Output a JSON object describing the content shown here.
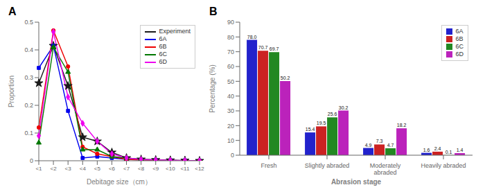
{
  "chart_data": [
    {
      "type": "line",
      "title": "A",
      "xlabel": "Debitage size（cm）",
      "ylabel": "Proportion",
      "categories": [
        "<1",
        "<2",
        "<3",
        "<4",
        "<5",
        "<6",
        "<7",
        "<8",
        "<9",
        "<10",
        "<11",
        "<12"
      ],
      "series": [
        {
          "name": "Experiment",
          "color": "#1a1a1a",
          "marker": "star",
          "values": [
            0.28,
            0.415,
            0.27,
            0.085,
            0.07,
            0.03,
            0.01,
            0.005,
            0.003,
            0.002,
            0.001,
            0.0
          ]
        },
        {
          "name": "6A",
          "color": "#0000ee",
          "marker": "square",
          "values": [
            0.335,
            0.415,
            0.18,
            0.01,
            0.015,
            0.01,
            0.005,
            0.003,
            0.002,
            0.001,
            0.001,
            0.0
          ]
        },
        {
          "name": "6B",
          "color": "#ee0000",
          "marker": "circle",
          "values": [
            0.12,
            0.47,
            0.34,
            0.05,
            0.025,
            0.015,
            0.005,
            0.003,
            0.002,
            0.001,
            0.001,
            0.0
          ]
        },
        {
          "name": "6C",
          "color": "#007700",
          "marker": "triangle",
          "values": [
            0.065,
            0.41,
            0.32,
            0.04,
            0.04,
            0.015,
            0.01,
            0.005,
            0.003,
            0.002,
            0.001,
            0.0
          ]
        },
        {
          "name": "6D",
          "color": "#ee00ee",
          "marker": "diamond",
          "values": [
            0.09,
            0.465,
            0.23,
            0.135,
            0.07,
            0.025,
            0.01,
            0.005,
            0.003,
            0.002,
            0.001,
            0.0
          ]
        }
      ],
      "ylim": [
        0,
        0.5
      ],
      "yticks": [
        0,
        0.1,
        0.2,
        0.3,
        0.4,
        0.5
      ],
      "grid": false,
      "legend": "upper right"
    },
    {
      "type": "bar",
      "title": "B",
      "xlabel": "Abrasion stage",
      "ylabel": "Percentage (%)",
      "categories": [
        "Fresh",
        "Slightly abraded",
        "Moderately\nabraded",
        "Heavily abraded"
      ],
      "series": [
        {
          "name": "6A",
          "color": "#2222cc",
          "values": [
            78.0,
            15.4,
            4.9,
            1.6
          ],
          "value_labels": [
            "78.0",
            "15.4",
            "4.9",
            "1.6"
          ]
        },
        {
          "name": "6B",
          "color": "#cc2222",
          "values": [
            70.7,
            19.5,
            7.3,
            2.4
          ],
          "value_labels": [
            "70.7",
            "19.5",
            "7.3",
            "2.4"
          ]
        },
        {
          "name": "6C",
          "color": "#228822",
          "values": [
            69.7,
            25.6,
            4.7,
            0.1
          ],
          "value_labels": [
            "69.7",
            "25.6",
            "4.7",
            "0.1"
          ]
        },
        {
          "name": "6D",
          "color": "#bb22bb",
          "values": [
            50.2,
            30.2,
            18.2,
            1.4
          ],
          "value_labels": [
            "50.2",
            "30.2",
            "18.2",
            "1.4"
          ]
        }
      ],
      "ylim": [
        0,
        90
      ],
      "yticks": [
        0,
        10,
        20,
        30,
        40,
        50,
        60,
        70,
        80,
        90
      ],
      "grid": false,
      "legend": "upper right",
      "data_labels": true
    }
  ]
}
